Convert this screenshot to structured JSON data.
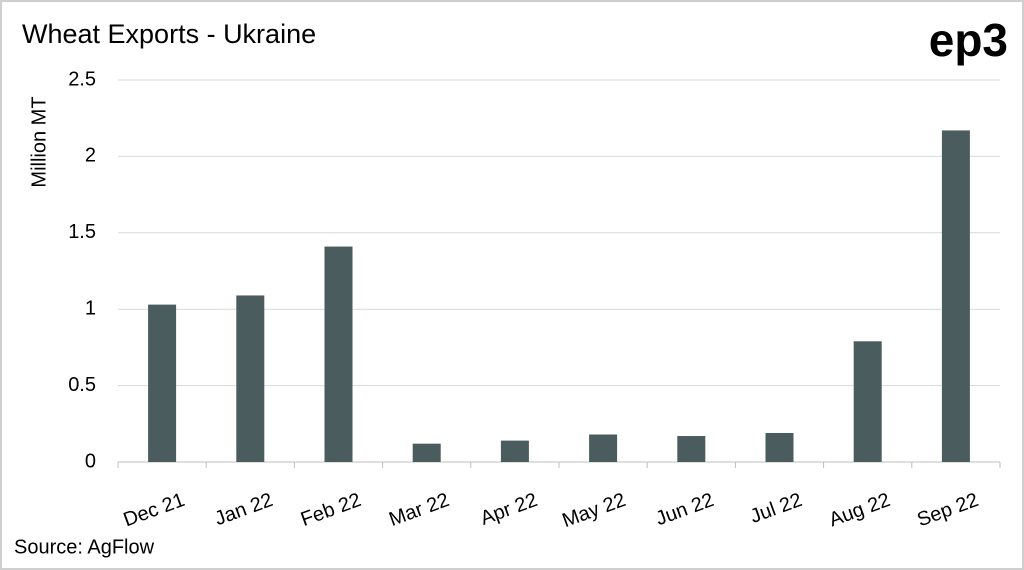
{
  "chart_data": {
    "type": "bar",
    "title": "Wheat Exports - Ukraine",
    "logo": "ep3",
    "y_label": "Million MT",
    "source": "Source: AgFlow",
    "categories": [
      "Dec 21",
      "Jan 22",
      "Feb 22",
      "Mar 22",
      "Apr 22",
      "May 22",
      "Jun 22",
      "Jul 22",
      "Aug 22",
      "Sep 22"
    ],
    "values": [
      1.03,
      1.09,
      1.41,
      0.12,
      0.14,
      0.18,
      0.17,
      0.19,
      0.79,
      2.17
    ],
    "color": "#4b5c5e",
    "ylim": [
      0,
      2.5
    ],
    "yticks": [
      0,
      0.5,
      1,
      1.5,
      2,
      2.5
    ],
    "grid": true
  }
}
